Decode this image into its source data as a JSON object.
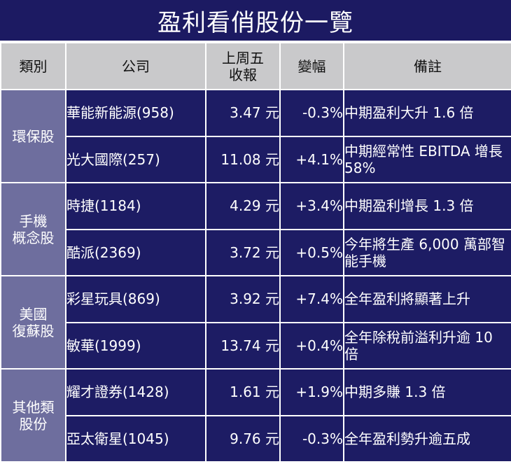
{
  "title": "盈利看俏股份一覽",
  "headers": {
    "category": "類別",
    "company": "公司",
    "close": "上周五\n收報",
    "change": "變幅",
    "note": "備註"
  },
  "groups": [
    {
      "category": "環保股",
      "rows": [
        {
          "company": "華能新能源(958)",
          "close": "3.47 元",
          "change": "-0.3%",
          "note": "中期盈利大升 1.6 倍"
        },
        {
          "company": "光大國際(257)",
          "close": "11.08 元",
          "change": "+4.1%",
          "note": "中期經常性 EBITDA 增長 58%"
        }
      ]
    },
    {
      "category": "手機\n概念股",
      "rows": [
        {
          "company": "時捷(1184)",
          "close": "4.29 元",
          "change": "+3.4%",
          "note": "中期盈利增長 1.3 倍"
        },
        {
          "company": "酷派(2369)",
          "close": "3.72 元",
          "change": "+0.5%",
          "note": "今年將生產 6,000 萬部智能手機"
        }
      ]
    },
    {
      "category": "美國\n復蘇股",
      "rows": [
        {
          "company": "彩星玩具(869)",
          "close": "3.92 元",
          "change": "+7.4%",
          "note": "全年盈利將顯著上升"
        },
        {
          "company": "敏華(1999)",
          "close": "13.74 元",
          "change": "+0.4%",
          "note": "全年除稅前溢利升逾 10 倍"
        }
      ]
    },
    {
      "category": "其他類\n股份",
      "rows": [
        {
          "company": "耀才證券(1428)",
          "close": "1.61 元",
          "change": "+1.9%",
          "note": "中期多賺 1.3 倍"
        },
        {
          "company": "亞太衛星(1045)",
          "close": "9.76 元",
          "change": "-0.3%",
          "note": "全年盈利勢升逾五成"
        }
      ]
    }
  ]
}
